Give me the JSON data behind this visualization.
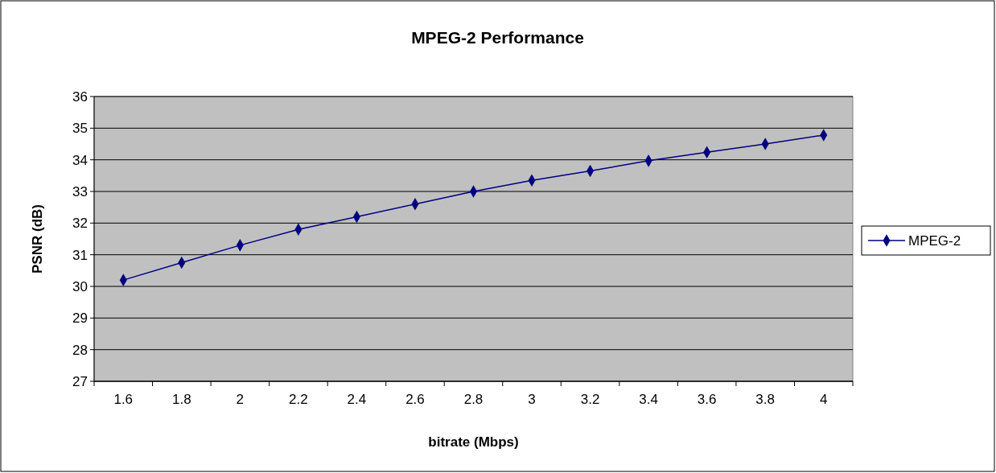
{
  "chart_data": {
    "type": "line",
    "title": "MPEG-2 Performance",
    "xlabel": "bitrate (Mbps)",
    "ylabel": "PSNR (dB)",
    "categories": [
      "1.6",
      "1.8",
      "2",
      "2.2",
      "2.4",
      "2.6",
      "2.8",
      "3",
      "3.2",
      "3.4",
      "3.6",
      "3.8",
      "4"
    ],
    "series": [
      {
        "name": "MPEG-2",
        "color": "#000080",
        "values": [
          30.2,
          30.75,
          31.3,
          31.8,
          32.2,
          32.6,
          33.0,
          33.35,
          33.65,
          33.97,
          34.24,
          34.5,
          34.78
        ]
      }
    ],
    "ylim": [
      27,
      36
    ],
    "yticks": [
      27,
      28,
      29,
      30,
      31,
      32,
      33,
      34,
      35,
      36
    ],
    "grid": "y",
    "legend": "right",
    "marker": "diamond",
    "line_style": "solid"
  }
}
